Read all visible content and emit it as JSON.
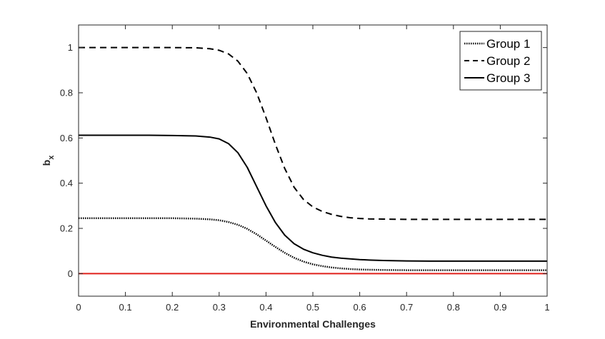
{
  "chart_data": {
    "type": "line",
    "title": "",
    "xlabel": "Environmental Challenges",
    "ylabel": "b",
    "ylabel_subscript": "x",
    "xlim": [
      0,
      1
    ],
    "ylim": [
      -0.1,
      1.1
    ],
    "xticks": [
      0,
      0.1,
      0.2,
      0.3,
      0.4,
      0.5,
      0.6,
      0.7,
      0.8,
      0.9,
      1
    ],
    "xtick_labels": [
      "0",
      "0.1",
      "0.2",
      "0.3",
      "0.4",
      "0.5",
      "0.6",
      "0.7",
      "0.8",
      "0.9",
      "1"
    ],
    "yticks": [
      0,
      0.2,
      0.4,
      0.6,
      0.8,
      1
    ],
    "ytick_labels": [
      "0",
      "0.2",
      "0.4",
      "0.6",
      "0.8",
      "1"
    ],
    "grid": false,
    "legend_position": "top-right",
    "x": [
      0,
      0.05,
      0.1,
      0.15,
      0.2,
      0.25,
      0.28,
      0.3,
      0.32,
      0.34,
      0.36,
      0.38,
      0.4,
      0.42,
      0.44,
      0.46,
      0.48,
      0.5,
      0.52,
      0.54,
      0.56,
      0.58,
      0.6,
      0.62,
      0.65,
      0.7,
      0.75,
      0.8,
      0.85,
      0.9,
      0.95,
      1.0
    ],
    "series": [
      {
        "name": "Group 1",
        "style": "dotted",
        "color": "#000000",
        "values": [
          0.245,
          0.245,
          0.245,
          0.245,
          0.245,
          0.243,
          0.24,
          0.236,
          0.228,
          0.216,
          0.198,
          0.174,
          0.146,
          0.118,
          0.092,
          0.07,
          0.053,
          0.041,
          0.033,
          0.027,
          0.023,
          0.02,
          0.018,
          0.017,
          0.016,
          0.015,
          0.015,
          0.015,
          0.015,
          0.015,
          0.015,
          0.015
        ]
      },
      {
        "name": "Group 2",
        "style": "dashed",
        "color": "#000000",
        "values": [
          1.0,
          1.0,
          1.0,
          1.0,
          1.0,
          0.999,
          0.995,
          0.988,
          0.972,
          0.94,
          0.885,
          0.8,
          0.69,
          0.572,
          0.465,
          0.382,
          0.328,
          0.295,
          0.275,
          0.262,
          0.253,
          0.247,
          0.244,
          0.242,
          0.241,
          0.24,
          0.24,
          0.24,
          0.24,
          0.24,
          0.24,
          0.24
        ]
      },
      {
        "name": "Group 3",
        "style": "solid",
        "color": "#000000",
        "values": [
          0.612,
          0.612,
          0.612,
          0.612,
          0.611,
          0.609,
          0.604,
          0.596,
          0.575,
          0.535,
          0.47,
          0.385,
          0.3,
          0.226,
          0.17,
          0.132,
          0.108,
          0.092,
          0.081,
          0.073,
          0.068,
          0.065,
          0.062,
          0.06,
          0.058,
          0.056,
          0.055,
          0.055,
          0.055,
          0.055,
          0.055,
          0.055
        ]
      },
      {
        "name": "",
        "style": "solid",
        "color": "#e0201b",
        "values": [
          0,
          0,
          0,
          0,
          0,
          0,
          0,
          0,
          0,
          0,
          0,
          0,
          0,
          0,
          0,
          0,
          0,
          0,
          0,
          0,
          0,
          0,
          0,
          0,
          0,
          0,
          0,
          0,
          0,
          0,
          0,
          0
        ]
      }
    ]
  }
}
